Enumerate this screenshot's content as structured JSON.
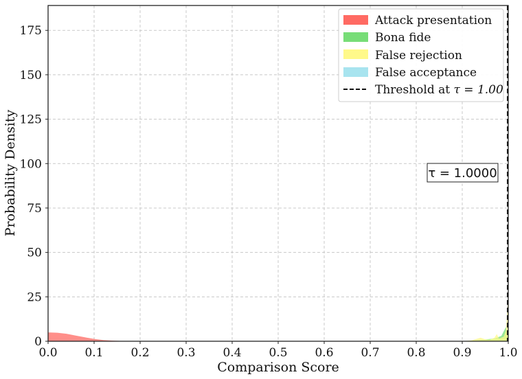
{
  "chart_data": {
    "type": "area",
    "xlabel": "Comparison Score",
    "ylabel": "Probability Density",
    "xlim": [
      0,
      1
    ],
    "ylim": [
      0,
      189
    ],
    "x_ticks": [
      0.0,
      0.1,
      0.2,
      0.3,
      0.4,
      0.5,
      0.6,
      0.7,
      0.8,
      0.9,
      1.0
    ],
    "x_tick_labels": [
      "0.0",
      "0.1",
      "0.2",
      "0.3",
      "0.4",
      "0.5",
      "0.6",
      "0.7",
      "0.8",
      "0.9",
      "1.0"
    ],
    "y_ticks": [
      0,
      25,
      50,
      75,
      100,
      125,
      150,
      175
    ],
    "y_tick_labels": [
      "0",
      "25",
      "50",
      "75",
      "100",
      "125",
      "150",
      "175"
    ],
    "grid": true,
    "legend_position": "top-right",
    "series": [
      {
        "name": "Attack presentation",
        "color": "#ff6a63",
        "x": [
          0.0,
          0.02,
          0.04,
          0.06,
          0.08,
          0.1,
          0.12,
          0.14,
          0.16,
          0.18,
          0.2,
          0.3,
          0.4,
          0.5,
          0.6,
          0.7,
          0.8,
          0.9,
          1.0
        ],
        "y": [
          5.0,
          4.8,
          4.2,
          3.2,
          2.2,
          1.3,
          0.7,
          0.35,
          0.15,
          0.08,
          0.05,
          0.03,
          0.02,
          0.02,
          0.02,
          0.02,
          0.02,
          0.02,
          0.0
        ]
      },
      {
        "name": "Bona fide",
        "color": "#77dd77",
        "x": [
          0.9,
          0.93,
          0.95,
          0.97,
          0.985,
          0.995,
          1.0
        ],
        "y": [
          0,
          0.5,
          1.0,
          1.5,
          3,
          8,
          0
        ]
      },
      {
        "name": "False rejection",
        "color": "#fff98a",
        "x": [
          0.9,
          0.92,
          0.94,
          0.95,
          0.96,
          0.97,
          0.975,
          0.98,
          0.99,
          0.995,
          0.999,
          1.0
        ],
        "y": [
          0,
          0.5,
          2.0,
          1.0,
          0.8,
          2.0,
          4.0,
          1.5,
          2.5,
          6.0,
          22.0,
          0
        ]
      },
      {
        "name": "False acceptance",
        "color": "#a8e4ef",
        "x": [],
        "y": []
      }
    ],
    "threshold": {
      "value": 1.0,
      "label_prefix": "Threshold at ",
      "label_math": "τ = 1.00"
    },
    "annotation": {
      "text": "τ = 1.0000",
      "x": 0.9,
      "y": 95
    }
  }
}
